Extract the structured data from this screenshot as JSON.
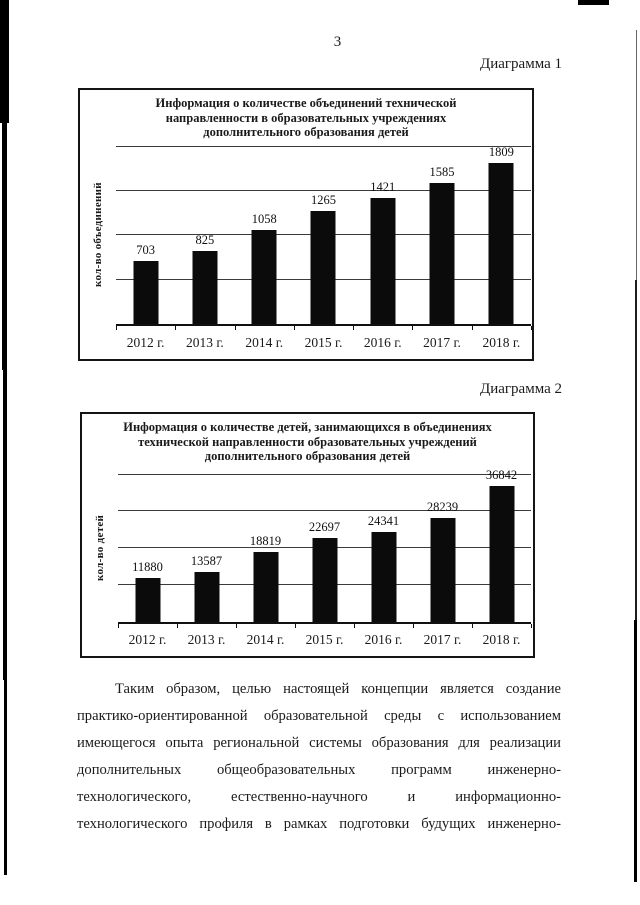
{
  "page": {
    "number": "3",
    "ink": "#1a1a1a",
    "background": "#ffffff",
    "bar_color": "#0b0b0b"
  },
  "chart_data": [
    {
      "type": "bar",
      "caption": "Диаграмма 1",
      "title": "Информация о количестве объединений технической направленности в образовательных учреждениях дополнительного образования детей",
      "title_lines": [
        "Информация о количестве объединений технической",
        "направленности в образовательных учреждениях",
        "дополнительного образования детей"
      ],
      "ylabel": "кол-во объединений",
      "xlabel": "",
      "categories": [
        "2012 г.",
        "2013 г.",
        "2014 г.",
        "2015 г.",
        "2016 г.",
        "2017 г.",
        "2018 г."
      ],
      "values": [
        703,
        825,
        1058,
        1265,
        1421,
        1585,
        1809
      ],
      "ylim": [
        0,
        2000
      ],
      "grid_step": 500,
      "grid": true,
      "legend": false,
      "data_labels": true,
      "bar_color": "#0b0b0b"
    },
    {
      "type": "bar",
      "caption": "Диаграмма 2",
      "title": "Информация о количестве детей, занимающихся в объединениях технической направленности образовательных учреждений дополнительного образования детей",
      "title_lines": [
        "Информация о количестве детей, занимающихся в объединениях",
        "технической направленности образовательных учреждений",
        "дополнительного образования детей"
      ],
      "ylabel": "кол-во детей",
      "xlabel": "",
      "categories": [
        "2012 г.",
        "2013 г.",
        "2014 г.",
        "2015 г.",
        "2016 г.",
        "2017 г.",
        "2018 г."
      ],
      "values": [
        11880,
        13587,
        18819,
        22697,
        24341,
        28239,
        36842
      ],
      "ylim": [
        0,
        40000
      ],
      "grid_step": 10000,
      "grid": true,
      "legend": false,
      "data_labels": true,
      "bar_color": "#0b0b0b"
    }
  ],
  "body": {
    "lines": [
      "Таким образом, целью настоящей концепции является создание",
      "практико-ориентированной образовательной среды с использованием",
      "имеющегося опыта региональной системы образования для реализации",
      "дополнительных общеобразовательных программ инженерно-",
      "технологического, естественно-научного и информационно-",
      "технологического профиля в рамках подготовки будущих инженерно-"
    ]
  }
}
